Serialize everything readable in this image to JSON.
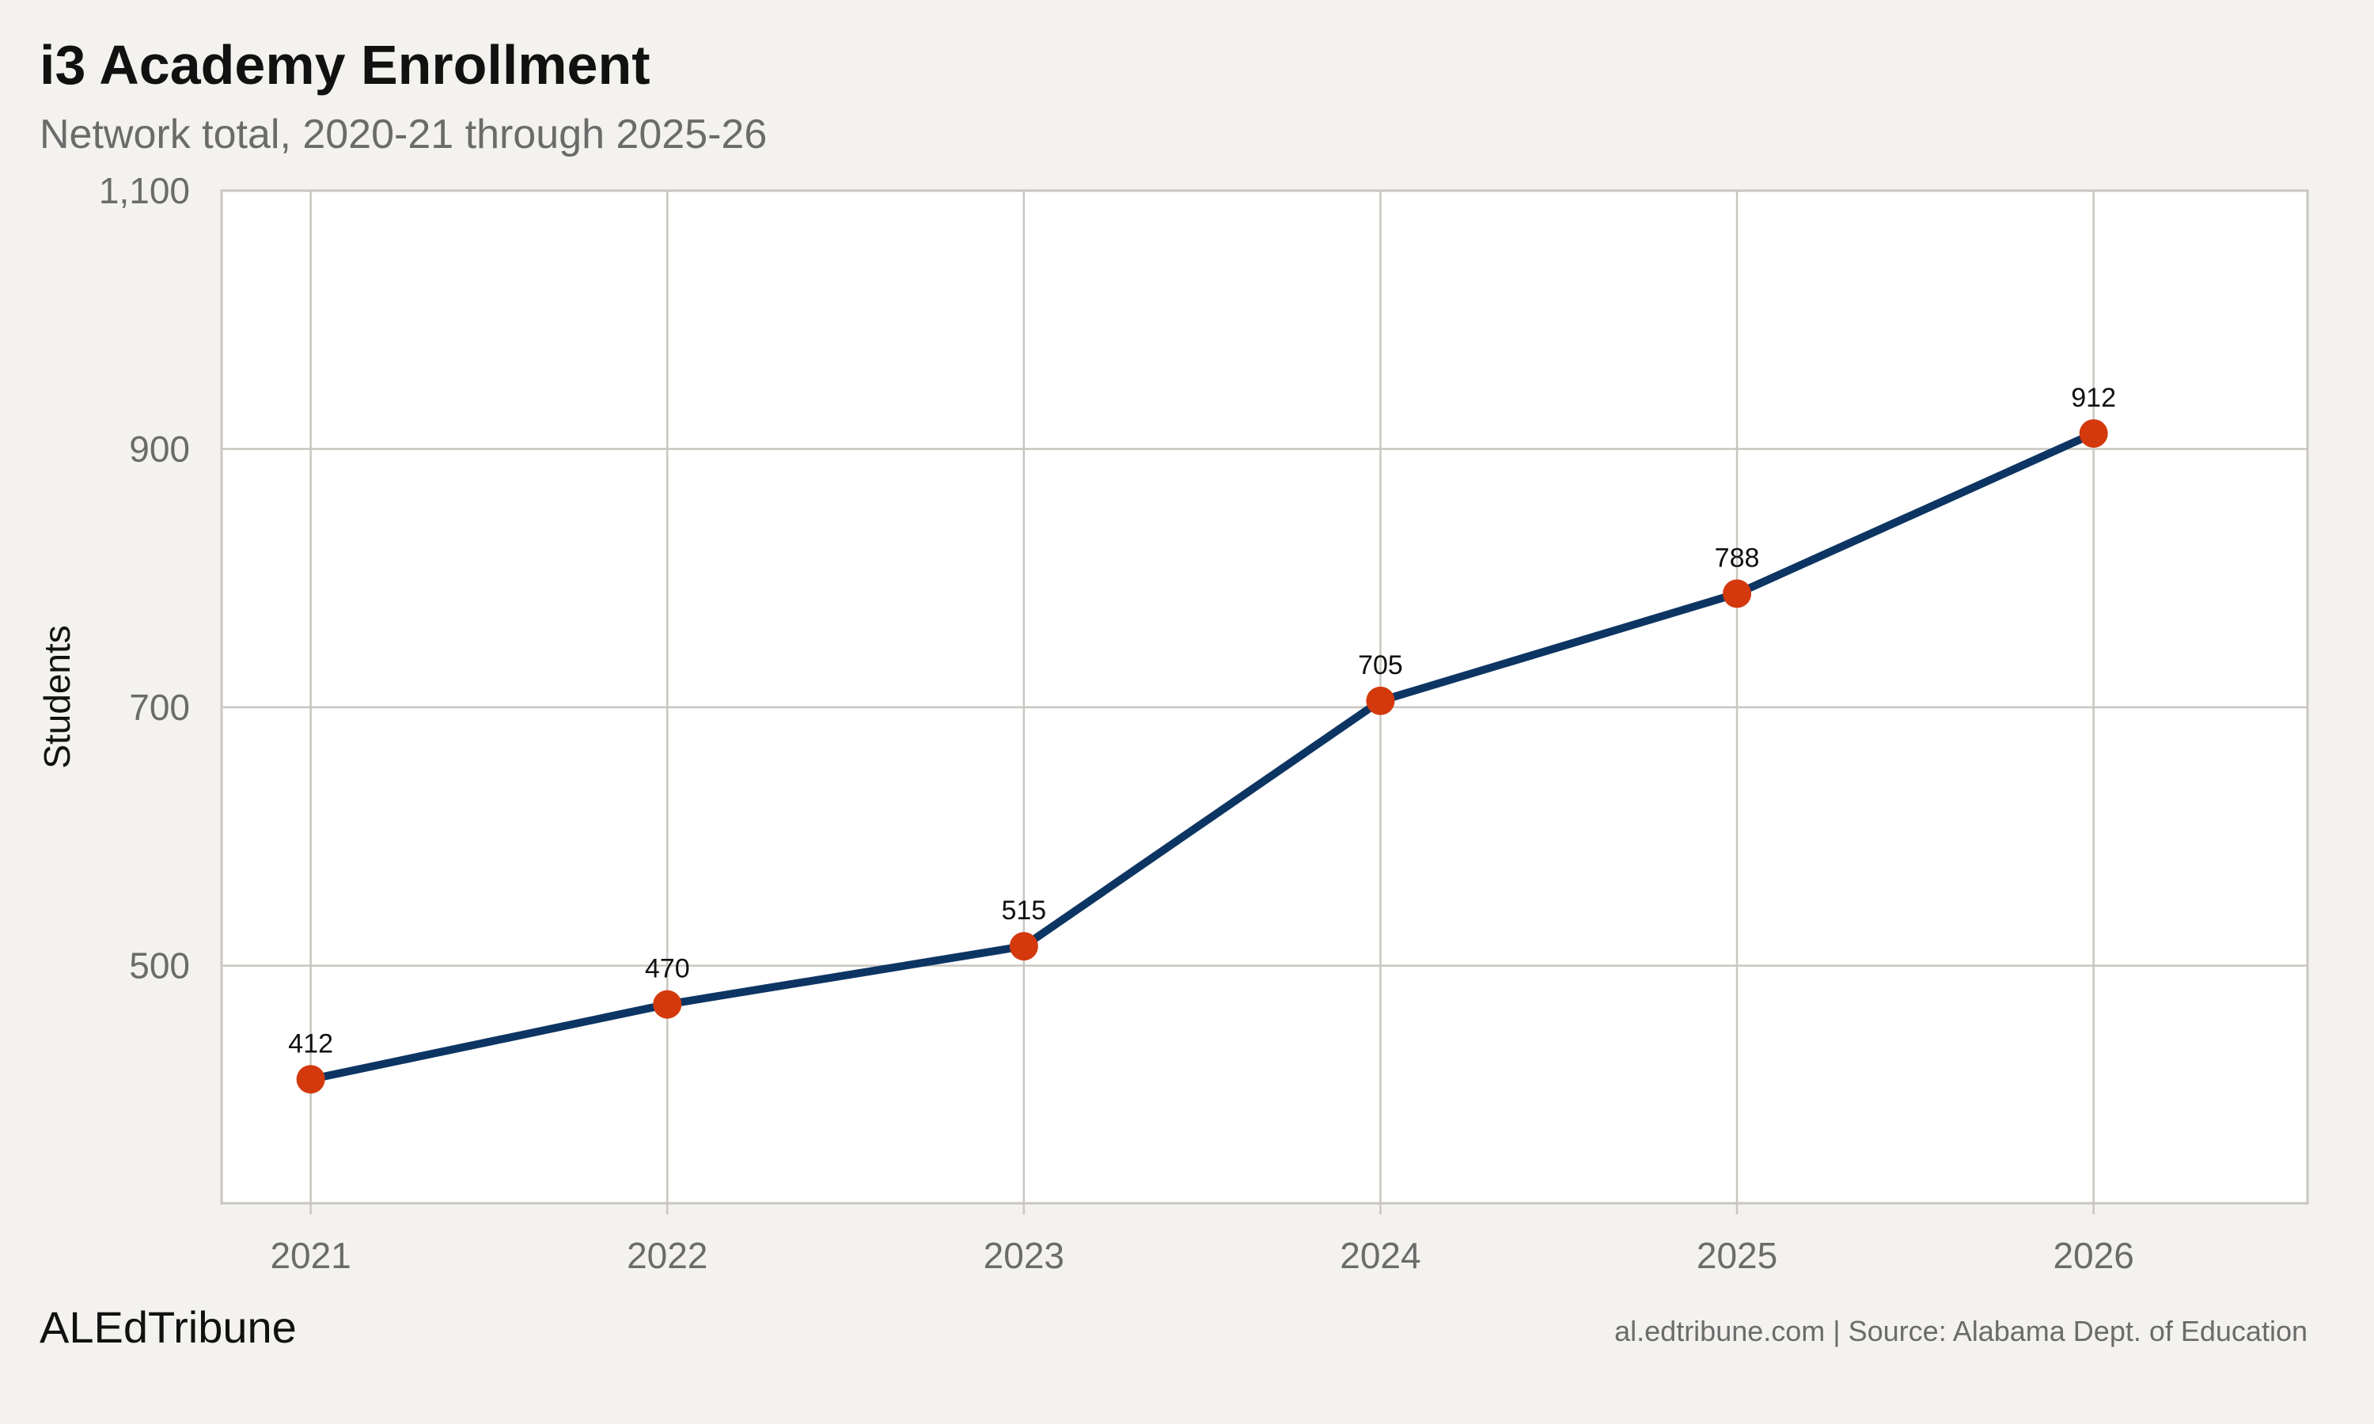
{
  "header": {
    "title": "i3 Academy Enrollment",
    "subtitle": "Network total, 2020-21 through 2025-26"
  },
  "footer": {
    "brand": "ALEdTribune",
    "source": "al.edtribune.com | Source: Alabama Dept. of Education"
  },
  "colors": {
    "line": "#0d3563",
    "point": "#d4380d",
    "grid": "#c8c6bf",
    "background": "#f4f2ee",
    "plot_background": "#ffffff"
  },
  "chart_data": {
    "type": "line",
    "title": "i3 Academy Enrollment",
    "subtitle": "Network total, 2020-21 through 2025-26",
    "xlabel": "",
    "ylabel": "Students",
    "x": [
      2021,
      2022,
      2023,
      2024,
      2025,
      2026
    ],
    "series": [
      {
        "values": [
          412,
          470,
          515,
          705,
          788,
          912
        ]
      }
    ],
    "data_labels": [
      "412",
      "470",
      "515",
      "705",
      "788",
      "912"
    ],
    "xlim": [
      2020.75,
      2026.6
    ],
    "ylim": [
      316,
      1100
    ],
    "yticks": [
      500,
      700,
      900,
      1100
    ],
    "ytick_labels": [
      "500",
      "700",
      "900",
      "1,100"
    ],
    "xticks": [
      2021,
      2022,
      2023,
      2024,
      2025,
      2026
    ],
    "xtick_labels": [
      "2021",
      "2022",
      "2023",
      "2024",
      "2025",
      "2026"
    ],
    "grid": true,
    "legend": "none"
  }
}
